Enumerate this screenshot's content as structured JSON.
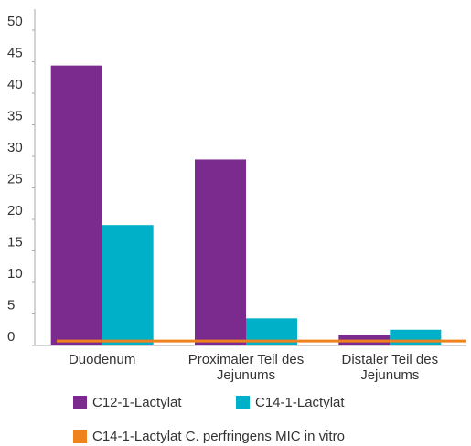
{
  "chart_data": {
    "type": "bar",
    "categories": [
      "Duodenum",
      "Proximaler Teil des Jejunums",
      "Distaler Teil des Jejunums"
    ],
    "series": [
      {
        "name": "C12-1-Lactylat",
        "color": "#7b2a8e",
        "values": [
          44.4,
          29.5,
          1.7
        ]
      },
      {
        "name": "C14-1-Lactylat",
        "color": "#00b0c8",
        "values": [
          19.1,
          4.3,
          2.5
        ]
      }
    ],
    "reference_line": {
      "name": "C14-1-Lactylat C. perfringens MIC in vitro",
      "color": "#f0821e",
      "value": 0.7
    },
    "ylim": [
      0,
      50
    ],
    "yticks": [
      0,
      5,
      10,
      15,
      20,
      25,
      30,
      35,
      40,
      45,
      50
    ]
  }
}
